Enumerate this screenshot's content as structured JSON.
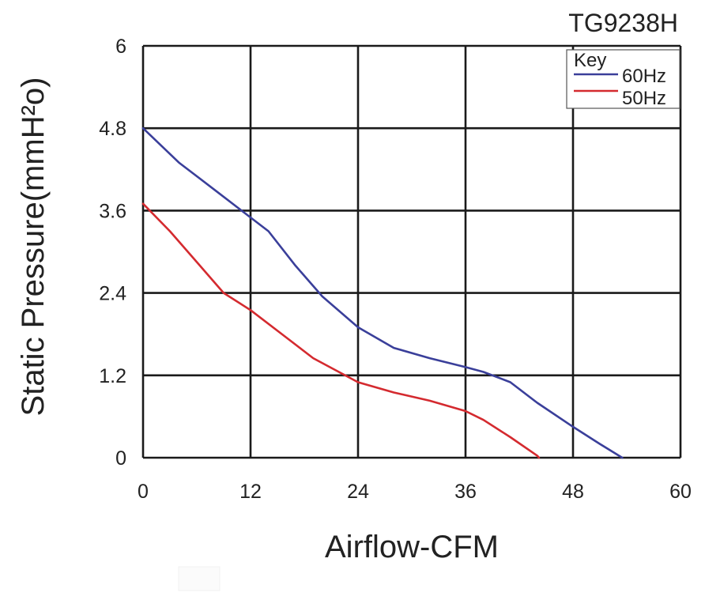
{
  "chart_data": {
    "type": "line",
    "title": "TG9238H",
    "xlabel": "Airflow-CFM",
    "ylabel": "Static Pressure(mmH²o)",
    "xlim": [
      0,
      60
    ],
    "ylim": [
      0,
      6
    ],
    "xticks": [
      "0",
      "12",
      "24",
      "36",
      "48",
      "60"
    ],
    "yticks": [
      "0",
      "1.2",
      "2.4",
      "3.6",
      "4.8",
      "6"
    ],
    "grid": true,
    "legend": {
      "title": "Key",
      "placement": "top-right"
    },
    "series": [
      {
        "name": "60Hz",
        "color": "#3a3f9a",
        "points": [
          [
            0,
            4.8
          ],
          [
            4,
            4.3
          ],
          [
            8,
            3.9
          ],
          [
            12,
            3.5
          ],
          [
            14,
            3.3
          ],
          [
            17,
            2.8
          ],
          [
            20,
            2.35
          ],
          [
            24,
            1.9
          ],
          [
            28,
            1.6
          ],
          [
            32,
            1.45
          ],
          [
            36,
            1.32
          ],
          [
            38,
            1.25
          ],
          [
            41,
            1.1
          ],
          [
            44,
            0.8
          ],
          [
            48,
            0.45
          ],
          [
            51,
            0.2
          ],
          [
            53.5,
            0
          ]
        ]
      },
      {
        "name": "50Hz",
        "color": "#d42a2f",
        "points": [
          [
            0,
            3.7
          ],
          [
            3,
            3.3
          ],
          [
            6,
            2.85
          ],
          [
            9,
            2.4
          ],
          [
            12,
            2.15
          ],
          [
            16,
            1.75
          ],
          [
            19,
            1.45
          ],
          [
            24,
            1.1
          ],
          [
            28,
            0.95
          ],
          [
            32,
            0.83
          ],
          [
            36,
            0.68
          ],
          [
            38,
            0.55
          ],
          [
            41,
            0.3
          ],
          [
            44,
            0.03
          ],
          [
            44.2,
            0
          ]
        ]
      }
    ]
  }
}
